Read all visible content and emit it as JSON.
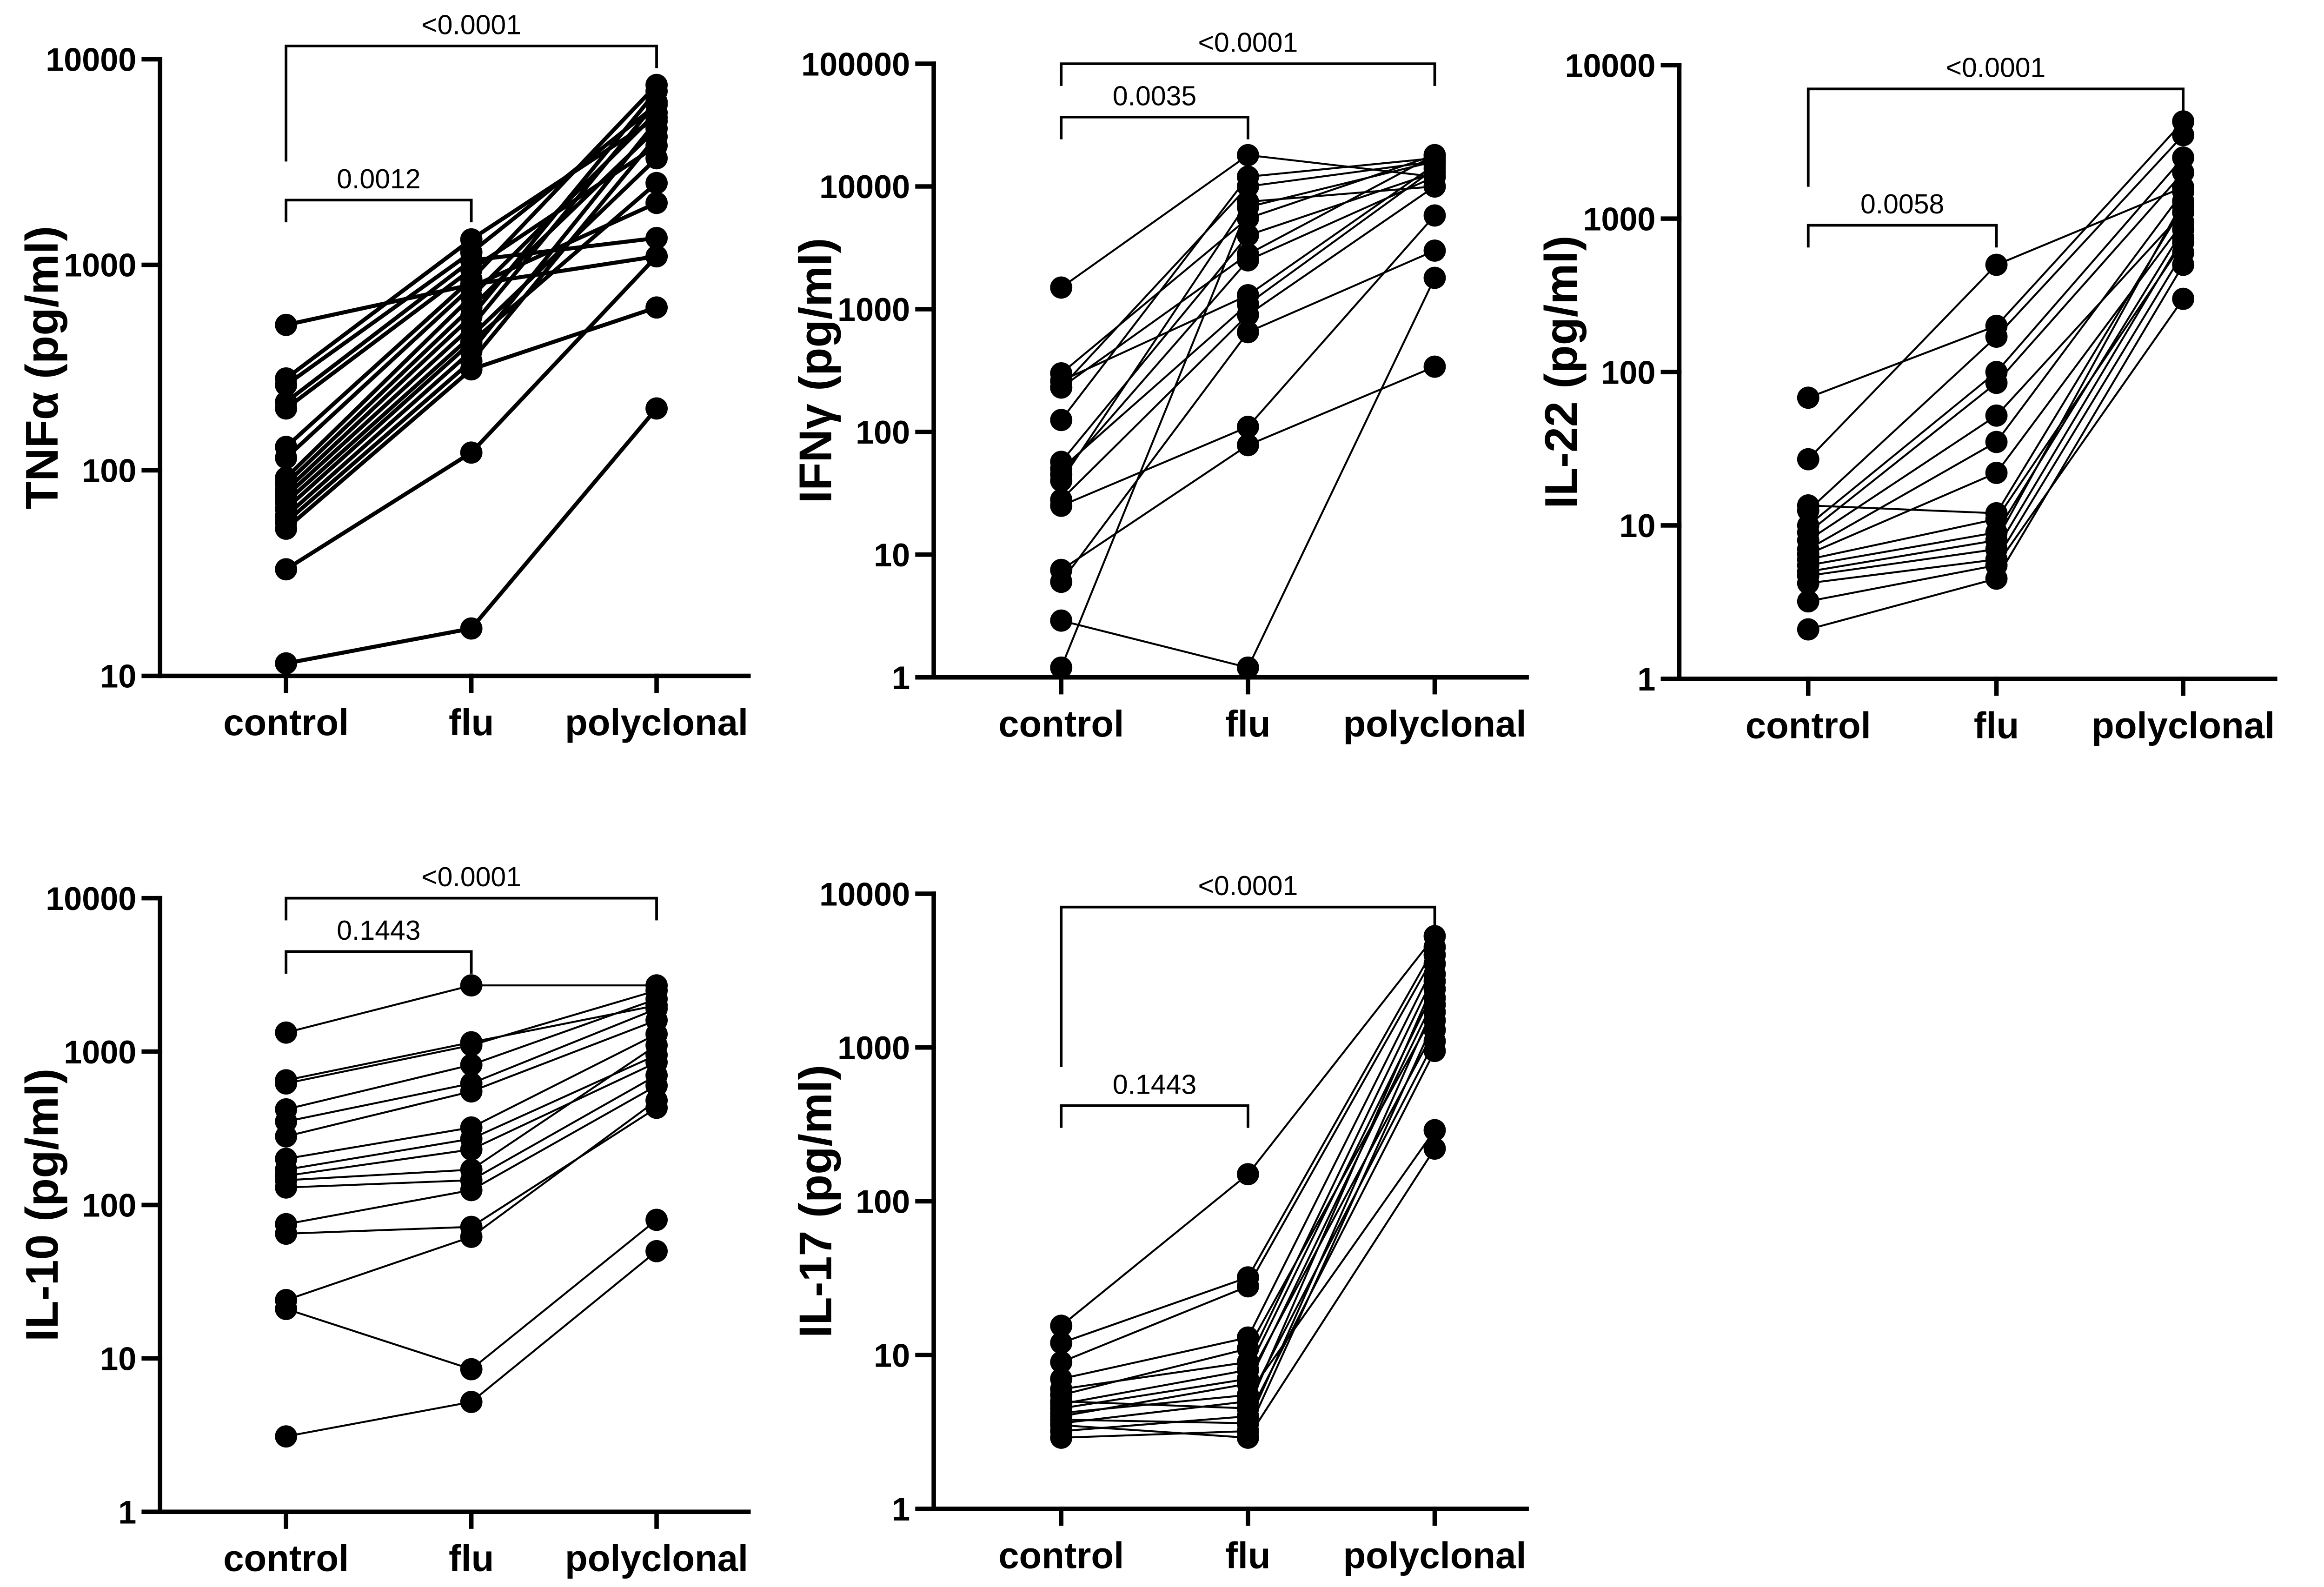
{
  "colors": {
    "ink": "#000000",
    "background": "#ffffff"
  },
  "chart_data": [
    {
      "type": "line",
      "paired": true,
      "ylabel": "TNFα (pg/ml)",
      "categories": [
        "control",
        "flu",
        "polyclonal"
      ],
      "yscale": "log",
      "ylim": [
        10,
        10000
      ],
      "yticks": [
        "10",
        "100",
        "1000",
        "10000"
      ],
      "comparisons": [
        {
          "groups": [
            0,
            1
          ],
          "label": "0.0012"
        },
        {
          "groups": [
            0,
            2
          ],
          "label": "<0.0001"
        }
      ],
      "donors": [
        [
          11.5,
          17,
          200
        ],
        [
          33,
          122,
          1100
        ],
        [
          52,
          310,
          620
        ],
        [
          56,
          340,
          4200
        ],
        [
          60,
          380,
          5000
        ],
        [
          65,
          420,
          2500
        ],
        [
          70,
          450,
          3300
        ],
        [
          75,
          500,
          6200
        ],
        [
          80,
          560,
          7000
        ],
        [
          86,
          620,
          4600
        ],
        [
          92,
          700,
          5500
        ],
        [
          115,
          780,
          2000
        ],
        [
          130,
          850,
          7500
        ],
        [
          200,
          950,
          3800
        ],
        [
          215,
          1050,
          1350
        ],
        [
          260,
          1150,
          6000
        ],
        [
          280,
          1330,
          5200
        ],
        [
          510,
          800,
          1100
        ]
      ]
    },
    {
      "type": "line",
      "paired": true,
      "ylabel": "IFNγ (pg/ml)",
      "categories": [
        "control",
        "flu",
        "polyclonal"
      ],
      "yscale": "log",
      "ylim": [
        1,
        100000
      ],
      "yticks": [
        "1",
        "10",
        "100",
        "1000",
        "10000",
        "100000"
      ],
      "comparisons": [
        {
          "groups": [
            0,
            1
          ],
          "label": "0.0035"
        },
        {
          "groups": [
            0,
            2
          ],
          "label": "<0.0001"
        }
      ],
      "donors": [
        [
          1.2,
          6800,
          16000
        ],
        [
          2.9,
          1.2,
          1800
        ],
        [
          6,
          650,
          3000
        ],
        [
          7.5,
          78,
          340
        ],
        [
          25,
          110,
          5800
        ],
        [
          28,
          900,
          10000
        ],
        [
          45,
          2500,
          12000
        ],
        [
          50,
          1100,
          14000
        ],
        [
          57,
          4000,
          13000
        ],
        [
          40,
          7500,
          10000
        ],
        [
          125,
          12000,
          17000
        ],
        [
          230,
          10000,
          16000
        ],
        [
          260,
          1300,
          15000
        ],
        [
          300,
          5500,
          18000
        ],
        [
          1500,
          18000,
          12000
        ],
        [
          230,
          2800,
          18000
        ]
      ]
    },
    {
      "type": "line",
      "paired": true,
      "ylabel": "IL-22 (pg/ml)",
      "categories": [
        "control",
        "flu",
        "polyclonal"
      ],
      "yscale": "log",
      "ylim": [
        1,
        10000
      ],
      "yticks": [
        "1",
        "10",
        "100",
        "1000",
        "10000"
      ],
      "comparisons": [
        {
          "groups": [
            0,
            1
          ],
          "label": "0.0058"
        },
        {
          "groups": [
            0,
            2
          ],
          "label": "<0.0001"
        }
      ],
      "donors": [
        [
          2.1,
          4.5,
          500
        ],
        [
          3.2,
          5.5,
          300
        ],
        [
          4.2,
          6,
          600
        ],
        [
          4.7,
          7,
          750
        ],
        [
          5,
          8,
          1300
        ],
        [
          5.5,
          9,
          850
        ],
        [
          6,
          11,
          700
        ],
        [
          6.5,
          22,
          950
        ],
        [
          7,
          35,
          1500
        ],
        [
          8,
          52,
          1100
        ],
        [
          9,
          85,
          2000
        ],
        [
          10,
          100,
          2500
        ],
        [
          12.5,
          170,
          3500
        ],
        [
          13.5,
          12,
          1200
        ],
        [
          27,
          500,
          1600
        ],
        [
          68,
          200,
          4300
        ]
      ]
    },
    {
      "type": "line",
      "paired": true,
      "ylabel": "IL-10 (pg/ml)",
      "categories": [
        "control",
        "flu",
        "polyclonal"
      ],
      "yscale": "log",
      "ylim": [
        1,
        10000
      ],
      "yticks": [
        "1",
        "10",
        "100",
        "1000",
        "10000"
      ],
      "comparisons": [
        {
          "groups": [
            0,
            1
          ],
          "label": "0.1443"
        },
        {
          "groups": [
            0,
            2
          ],
          "label": "<0.0001"
        }
      ],
      "donors": [
        [
          3.1,
          5.2,
          50
        ],
        [
          21,
          8.5,
          80
        ],
        [
          24,
          62,
          480
        ],
        [
          65,
          72,
          430
        ],
        [
          75,
          125,
          600
        ],
        [
          130,
          145,
          700
        ],
        [
          145,
          170,
          1100
        ],
        [
          155,
          230,
          850
        ],
        [
          170,
          270,
          950
        ],
        [
          200,
          320,
          1300
        ],
        [
          280,
          550,
          1600
        ],
        [
          350,
          620,
          1900
        ],
        [
          420,
          820,
          2200
        ],
        [
          620,
          1100,
          2500
        ],
        [
          650,
          1150,
          2000
        ],
        [
          1330,
          2700,
          2700
        ]
      ]
    },
    {
      "type": "line",
      "paired": true,
      "ylabel": "IL-17 (pg/ml)",
      "categories": [
        "control",
        "flu",
        "polyclonal"
      ],
      "yscale": "log",
      "ylim": [
        1,
        10000
      ],
      "yticks": [
        "1",
        "10",
        "100",
        "1000",
        "10000"
      ],
      "comparisons": [
        {
          "groups": [
            0,
            1
          ],
          "label": "0.1443"
        },
        {
          "groups": [
            0,
            2
          ],
          "label": "<0.0001"
        }
      ],
      "donors": [
        [
          2.9,
          3.2,
          1500
        ],
        [
          3.2,
          4,
          950
        ],
        [
          3.5,
          2.9,
          220
        ],
        [
          3.6,
          5,
          1100
        ],
        [
          3.8,
          3.6,
          1900
        ],
        [
          4,
          6.5,
          2100
        ],
        [
          4.2,
          5.5,
          290
        ],
        [
          4.5,
          7,
          1300
        ],
        [
          4.8,
          8,
          2400
        ],
        [
          5,
          4.5,
          2700
        ],
        [
          5.5,
          11,
          1700
        ],
        [
          6,
          9,
          3000
        ],
        [
          7,
          13,
          3500
        ],
        [
          9,
          28,
          4000
        ],
        [
          12,
          32,
          4500
        ],
        [
          15.5,
          150,
          5300
        ]
      ]
    }
  ]
}
